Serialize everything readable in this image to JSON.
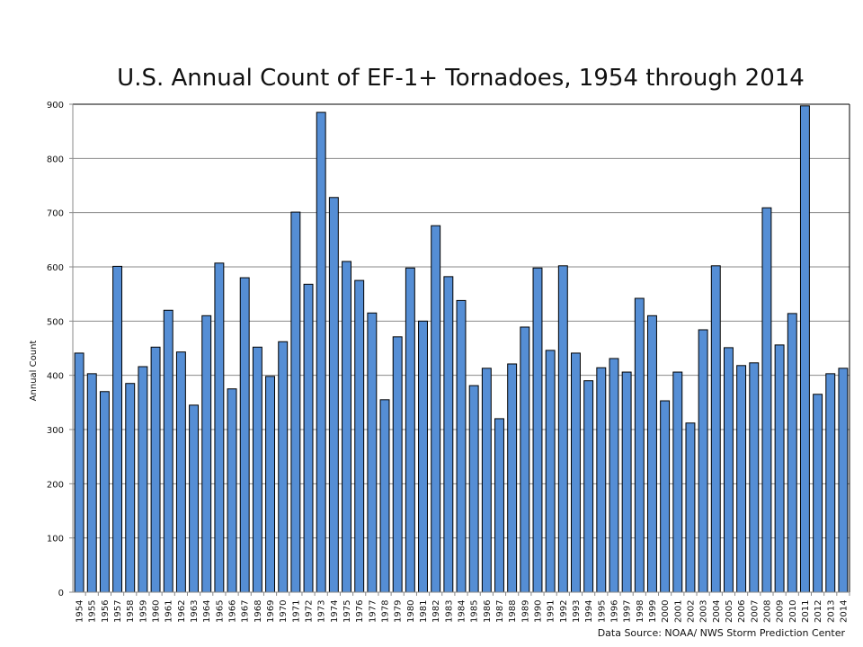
{
  "chart_data": {
    "type": "bar",
    "title": "U.S. Annual Count of EF-1+ Tornadoes, 1954 through 2014",
    "xlabel": "",
    "ylabel": "Annual Count",
    "ylim": [
      0,
      900
    ],
    "yticks": [
      "0",
      "100",
      "200",
      "300",
      "400",
      "500",
      "600",
      "700",
      "800",
      "900"
    ],
    "grid": true,
    "bar_color": "#558ED5",
    "categories": [
      "1954",
      "1955",
      "1956",
      "1957",
      "1958",
      "1959",
      "1960",
      "1961",
      "1962",
      "1963",
      "1964",
      "1965",
      "1966",
      "1967",
      "1968",
      "1969",
      "1970",
      "1971",
      "1972",
      "1973",
      "1974",
      "1975",
      "1976",
      "1977",
      "1978",
      "1979",
      "1980",
      "1981",
      "1982",
      "1983",
      "1984",
      "1985",
      "1986",
      "1987",
      "1988",
      "1989",
      "1990",
      "1991",
      "1992",
      "1993",
      "1994",
      "1995",
      "1996",
      "1997",
      "1998",
      "1999",
      "2000",
      "2001",
      "2002",
      "2003",
      "2004",
      "2005",
      "2006",
      "2007",
      "2008",
      "2009",
      "2010",
      "2011",
      "2012",
      "2013",
      "2014"
    ],
    "values": [
      441,
      403,
      370,
      601,
      385,
      416,
      452,
      520,
      443,
      345,
      510,
      607,
      375,
      580,
      452,
      398,
      462,
      701,
      568,
      885,
      728,
      610,
      575,
      515,
      355,
      471,
      598,
      500,
      676,
      582,
      538,
      381,
      413,
      320,
      421,
      489,
      598,
      446,
      602,
      441,
      390,
      414,
      431,
      406,
      542,
      510,
      353,
      406,
      312,
      484,
      602,
      451,
      418,
      423,
      709,
      456,
      514,
      897,
      365,
      403,
      413
    ],
    "source": "Data Source: NOAA/ NWS Storm Prediction Center"
  }
}
